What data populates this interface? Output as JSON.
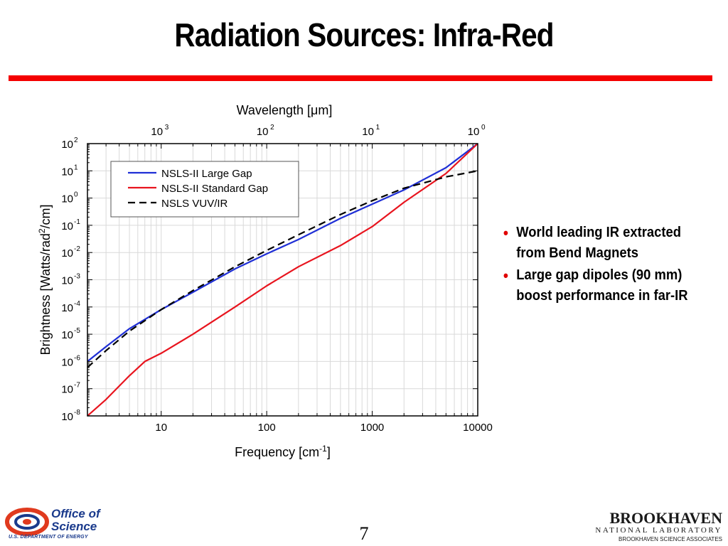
{
  "slide": {
    "title": "Radiation Sources: Infra-Red",
    "page_number": "7",
    "accent_color": "#f40000"
  },
  "bullets": [
    "World leading IR extracted from Bend Magnets",
    "Large gap dipoles (90 mm) boost performance in far-IR"
  ],
  "footer": {
    "doe_line1": "Office of",
    "doe_line2": "Science",
    "doe_sub": "U.S. DEPARTMENT OF ENERGY",
    "bnl_name": "BROOKHAVEN",
    "bnl_lab": "NATIONAL LABORATORY",
    "bnl_assoc": "BROOKHAVEN SCIENCE ASSOCIATES"
  },
  "chart_data": {
    "type": "line",
    "xlabel": "Frequency [cm",
    "xlabel_sup": "-1",
    "xlabel_end": "]",
    "ylabel_pre": "Brightness [Watts/rad",
    "ylabel_sup": "2",
    "ylabel_post": "/cm]",
    "top_label": "Wavelength [μm]",
    "x_scale": "log",
    "y_scale": "log",
    "xlim": [
      2,
      10000
    ],
    "ylim": [
      1e-08,
      100
    ],
    "x_ticks": [
      10,
      100,
      1000,
      10000
    ],
    "x_tick_labels": [
      "10",
      "100",
      "1000",
      "10000"
    ],
    "top_ticks_um": [
      1000,
      100,
      10,
      1
    ],
    "top_tick_exponents": [
      "3",
      "2",
      "1",
      "0"
    ],
    "y_tick_exponents": [
      "2",
      "1",
      "0",
      "-1",
      "-2",
      "-3",
      "-4",
      "-5",
      "-6",
      "-7",
      "-8"
    ],
    "grid": true,
    "legend_position": "top-left",
    "series": [
      {
        "name": "NSLS-II Large Gap",
        "color": "#1f2fd6",
        "dash": "solid",
        "x": [
          2,
          3,
          5,
          10,
          20,
          50,
          100,
          200,
          500,
          1000,
          2000,
          5000,
          10000
        ],
        "y": [
          1e-06,
          3.5e-06,
          1.6e-05,
          8e-05,
          0.00035,
          0.0025,
          0.009,
          0.03,
          0.18,
          0.6,
          2.0,
          13,
          100
        ]
      },
      {
        "name": "NSLS-II Standard Gap",
        "color": "#e8141e",
        "dash": "solid",
        "x": [
          2,
          3,
          5,
          7,
          10,
          20,
          50,
          100,
          200,
          500,
          1000,
          2000,
          5000,
          10000
        ],
        "y": [
          1e-08,
          4e-08,
          3e-07,
          1e-06,
          2e-06,
          1e-05,
          0.0001,
          0.0006,
          0.003,
          0.018,
          0.09,
          0.7,
          8,
          100
        ]
      },
      {
        "name": "NSLS VUV/IR",
        "color": "#000000",
        "dash": "dashed",
        "x": [
          2,
          3,
          5,
          10,
          20,
          50,
          100,
          200,
          500,
          1000,
          2000,
          5000,
          10000
        ],
        "y": [
          6e-07,
          2.5e-06,
          1.3e-05,
          8e-05,
          0.0004,
          0.003,
          0.012,
          0.045,
          0.25,
          0.8,
          2.3,
          6.0,
          10
        ]
      }
    ]
  }
}
